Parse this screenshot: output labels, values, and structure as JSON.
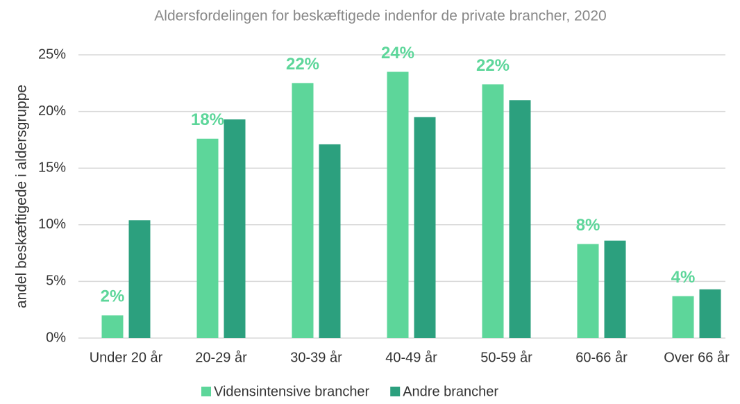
{
  "chart_data": {
    "type": "bar",
    "title": "Aldersfordelingen for beskæftigede indenfor de private brancher, 2020",
    "y_label": "andel beskæftigede i aldersgruppe",
    "categories": [
      "Under 20 år",
      "20-29 år",
      "30-39 år",
      "40-49 år",
      "50-59 år",
      "60-66 år",
      "Over 66 år"
    ],
    "series": [
      {
        "name": "Vidensintensive brancher",
        "color": "#5dd69a",
        "values": [
          2.0,
          17.6,
          22.5,
          23.5,
          22.4,
          8.3,
          3.7
        ],
        "value_labels": [
          "2%",
          "18%",
          "22%",
          "24%",
          "22%",
          "8%",
          "4%"
        ]
      },
      {
        "name": "Andre brancher",
        "color": "#2ca07e",
        "values": [
          10.4,
          19.3,
          17.1,
          19.5,
          21.0,
          8.6,
          4.3
        ]
      }
    ],
    "ylim": [
      0,
      25
    ],
    "yticks": [
      {
        "value": 0,
        "label": "0%"
      },
      {
        "value": 5,
        "label": "5%"
      },
      {
        "value": 10,
        "label": "10%"
      },
      {
        "value": 15,
        "label": "15%"
      },
      {
        "value": 20,
        "label": "20%"
      },
      {
        "value": 25,
        "label": "25%"
      }
    ],
    "grid": true,
    "legend": "bottom"
  }
}
